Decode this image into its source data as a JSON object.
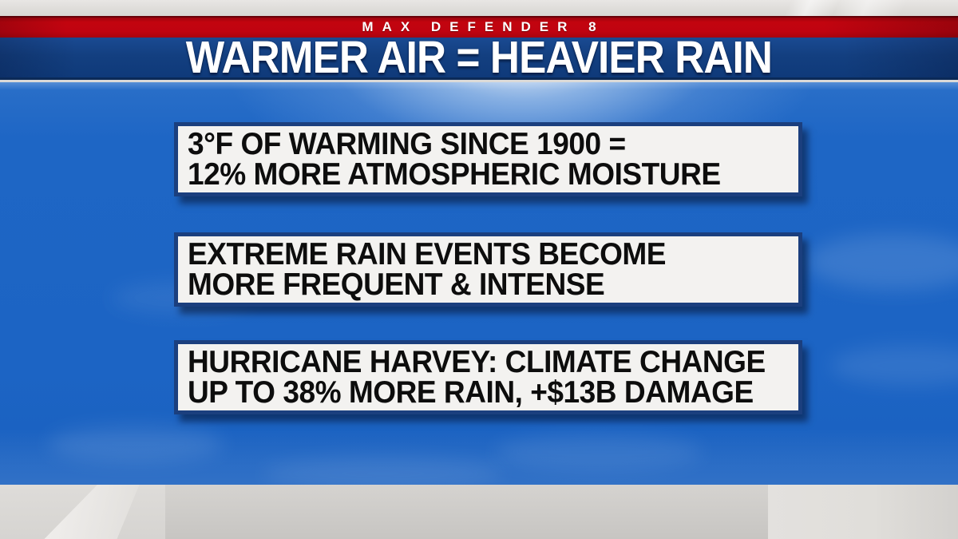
{
  "header": {
    "brand": "MAX DEFENDER 8",
    "title": "WARMER AIR = HEAVIER RAIN"
  },
  "facts": [
    {
      "line1": "3°F OF WARMING SINCE 1900 =",
      "line2": "12% MORE ATMOSPHERIC MOISTURE"
    },
    {
      "line1": "EXTREME RAIN EVENTS BECOME",
      "line2": "MORE FREQUENT & INTENSE"
    },
    {
      "line1": "HURRICANE HARVEY: CLIMATE CHANGE",
      "line2": "UP TO 38% MORE RAIN, +$13B DAMAGE"
    }
  ],
  "colors": {
    "banner_red": "#c00310",
    "banner_blue": "#123f80",
    "sky_blue": "#1c64c4",
    "box_border_blue": "#1b3f7e",
    "box_fill": "#f3f2f0",
    "fact_text": "#0d0d0d",
    "studio_gray": "#dcdad7"
  }
}
